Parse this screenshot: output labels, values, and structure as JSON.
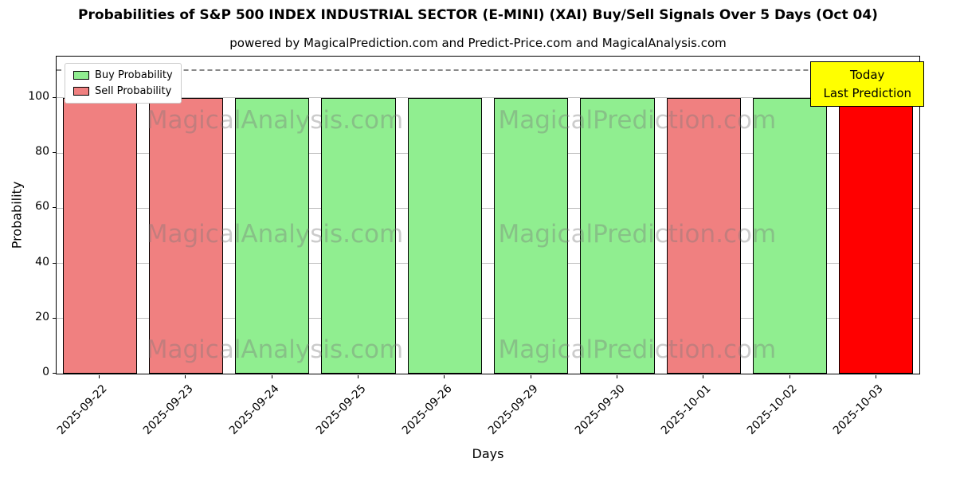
{
  "chart_data": {
    "type": "bar",
    "title": "Probabilities of S&P 500 INDEX INDUSTRIAL SECTOR (E-MINI) (XAI) Buy/Sell Signals Over 5 Days (Oct 04)",
    "subtitle": "powered by MagicalPrediction.com and Predict-Price.com and MagicalAnalysis.com",
    "xlabel": "Days",
    "ylabel": "Probability",
    "ylim": [
      0,
      115
    ],
    "yticks": [
      0,
      20,
      40,
      60,
      80,
      100
    ],
    "grid": "horizontal",
    "categories": [
      "2025-09-22",
      "2025-09-23",
      "2025-09-24",
      "2025-09-25",
      "2025-09-26",
      "2025-09-29",
      "2025-09-30",
      "2025-10-01",
      "2025-10-02",
      "2025-10-03"
    ],
    "values": [
      100,
      100,
      100,
      100,
      100,
      100,
      100,
      100,
      100,
      100
    ],
    "bar_colors": [
      "#f08080",
      "#f08080",
      "#90ee90",
      "#90ee90",
      "#90ee90",
      "#90ee90",
      "#90ee90",
      "#f08080",
      "#90ee90",
      "#ff0000"
    ],
    "bar_edge_color": "#000000",
    "legend": {
      "position": "top-left",
      "items": [
        {
          "label": "Buy Probability",
          "color": "#90ee90"
        },
        {
          "label": "Sell Probability",
          "color": "#f08080"
        }
      ]
    },
    "dashed_line_y": 110,
    "annotation": {
      "lines": [
        "Today",
        "Last Prediction"
      ],
      "bg": "#ffff00",
      "border": "#000000"
    },
    "watermarks": [
      {
        "text": "MagicalAnalysis.com",
        "x": 0.253,
        "y": 0.2
      },
      {
        "text": "MagicalPrediction.com",
        "x": 0.673,
        "y": 0.2
      },
      {
        "text": "MagicalAnalysis.com",
        "x": 0.253,
        "y": 0.56
      },
      {
        "text": "MagicalPrediction.com",
        "x": 0.673,
        "y": 0.56
      },
      {
        "text": "MagicalAnalysis.com",
        "x": 0.253,
        "y": 0.925
      },
      {
        "text": "MagicalPrediction.com",
        "x": 0.673,
        "y": 0.925
      }
    ]
  }
}
